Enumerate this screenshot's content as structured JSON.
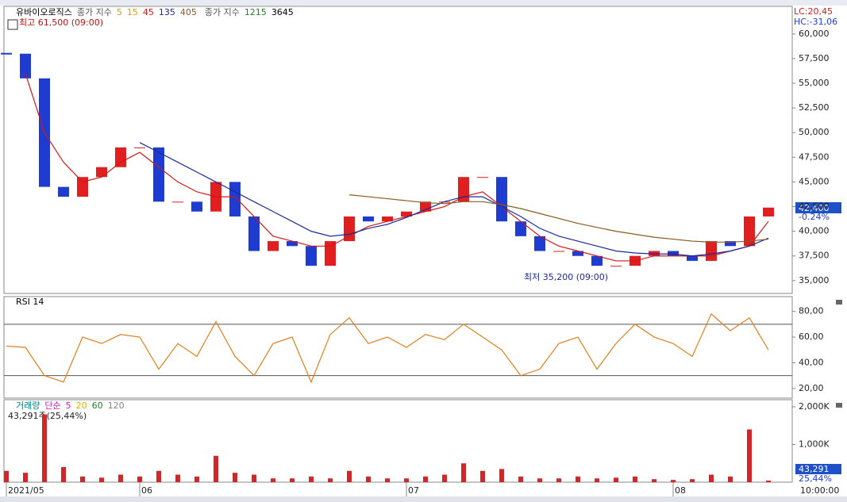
{
  "chart_data": [
    {
      "type": "candlestick",
      "title": "유바이오로직스",
      "legend_label": "종가 지수",
      "legend_extra": [
        {
          "name": "5",
          "color": "#b8a040"
        },
        {
          "name": "15",
          "color": "#e0a000"
        }
      ],
      "legend2_label": "종가 지수",
      "legend2": [
        {
          "name": "1215",
          "color": "#208020"
        },
        {
          "name": "3645",
          "color": "#000000"
        }
      ],
      "categories": [
        "2021/05",
        null,
        null,
        null,
        null,
        null,
        null,
        "06",
        null,
        null,
        null,
        null,
        null,
        null,
        null,
        null,
        null,
        null,
        null,
        null,
        null,
        "07",
        null,
        null,
        null,
        null,
        null,
        null,
        null,
        null,
        null,
        null,
        null,
        null,
        null,
        "08",
        null,
        null,
        null,
        null,
        null
      ],
      "values": [
        58000,
        55500,
        44500,
        43500,
        45500,
        46500,
        48500,
        48500,
        43000,
        43000,
        42000,
        45000,
        41500,
        38000,
        39000,
        38500,
        36500,
        39000,
        41500,
        41000,
        41500,
        42000,
        43000,
        43000,
        45500,
        45500,
        41000,
        39500,
        38000,
        38000,
        37500,
        36500,
        36500,
        37500,
        38000,
        37500,
        37000,
        39000,
        38500,
        41500,
        42400
      ],
      "up_color": "#e02020",
      "down_color": "#1e3cd0",
      "series": [
        {
          "name": "45",
          "color": "#d01818",
          "values": [
            null,
            56000,
            50000,
            47000,
            45000,
            45500,
            47000,
            48000,
            46500,
            45000,
            44000,
            43500,
            43500,
            41500,
            39500,
            39000,
            38500,
            38500,
            39500,
            40500,
            41000,
            41500,
            42000,
            42500,
            43500,
            44000,
            42500,
            41000,
            39500,
            38500,
            38000,
            37500,
            37000,
            37000,
            37500,
            37500,
            37500,
            37500,
            38000,
            38500,
            41000
          ]
        },
        {
          "name": "135",
          "color": "#1a2a9a",
          "values": [
            null,
            null,
            null,
            null,
            null,
            null,
            null,
            49000,
            48000,
            47000,
            46000,
            45000,
            44000,
            43000,
            42000,
            41000,
            40000,
            39500,
            39700,
            40300,
            40700,
            41400,
            42200,
            43000,
            43500,
            43500,
            42500,
            41500,
            40300,
            39500,
            39000,
            38500,
            38000,
            37800,
            37700,
            37700,
            37500,
            37700,
            38000,
            38500,
            39300
          ]
        },
        {
          "name": "405",
          "color": "#8a5a20",
          "values": [
            null,
            null,
            null,
            null,
            null,
            null,
            null,
            null,
            null,
            null,
            null,
            null,
            null,
            null,
            null,
            null,
            null,
            null,
            43700,
            43500,
            43300,
            43100,
            42900,
            42800,
            43000,
            43000,
            42700,
            42300,
            41800,
            41300,
            40800,
            40400,
            40000,
            39700,
            39400,
            39200,
            39000,
            38900,
            38900,
            39000,
            39200
          ]
        }
      ],
      "ylim": [
        33700,
        62800
      ],
      "yticks": [
        {
          "value": 60000,
          "label": "60,000"
        },
        {
          "value": 57500,
          "label": "57,500"
        },
        {
          "value": 55000,
          "label": "55,000"
        },
        {
          "value": 52500,
          "label": "52,500"
        },
        {
          "value": 50000,
          "label": "50,000"
        },
        {
          "value": 47500,
          "label": "47,500"
        },
        {
          "value": 45000,
          "label": "45,000"
        },
        {
          "value": 42500,
          "label": "42,500"
        },
        {
          "value": 40000,
          "label": "40,000"
        },
        {
          "value": 37500,
          "label": "37,500"
        },
        {
          "value": 35000,
          "label": "35,000"
        }
      ],
      "lc": "LC:20,45",
      "hc": "HC:-31,06",
      "high_note": "최고 61,500 (09:00)",
      "low_note": "최저 35,200 (09:00)",
      "last_label": "42,400",
      "change_label": "-0.24%"
    },
    {
      "type": "line",
      "title": "RSI 14",
      "color": "#e08020",
      "values": [
        53,
        52,
        30,
        25,
        60,
        55,
        62,
        60,
        35,
        55,
        45,
        72,
        45,
        30,
        55,
        60,
        25,
        62,
        75,
        55,
        60,
        52,
        62,
        58,
        70,
        60,
        50,
        30,
        35,
        55,
        60,
        35,
        55,
        70,
        60,
        55,
        45,
        78,
        65,
        75,
        50
      ],
      "ylim": [
        12.5,
        91.5
      ],
      "yticks": [
        {
          "value": 80,
          "label": "80,00"
        },
        {
          "value": 60,
          "label": "60,00"
        },
        {
          "value": 40,
          "label": "40,00"
        },
        {
          "value": 20,
          "label": "20,00"
        }
      ],
      "hlines": [
        70,
        30
      ]
    },
    {
      "type": "bar",
      "title": "거래량",
      "legend_label": "단순",
      "legend": [
        {
          "name": "5",
          "color": "#c020c0"
        },
        {
          "name": "20",
          "color": "#e0b000"
        },
        {
          "name": "60",
          "color": "#208020"
        },
        {
          "name": "120",
          "color": "#808080"
        }
      ],
      "subtitle": "43,291주(25,44%)",
      "color": "#d02828",
      "values": [
        300000,
        250000,
        1800000,
        400000,
        150000,
        120000,
        200000,
        150000,
        300000,
        200000,
        150000,
        700000,
        250000,
        200000,
        100000,
        100000,
        150000,
        100000,
        300000,
        150000,
        100000,
        100000,
        150000,
        200000,
        500000,
        300000,
        350000,
        150000,
        100000,
        100000,
        150000,
        100000,
        120000,
        150000,
        80000,
        60000,
        80000,
        200000,
        150000,
        1400000,
        43291
      ],
      "ylim": [
        0,
        2190000
      ],
      "yticks": [
        {
          "value": 2000000,
          "label": "2,000K"
        },
        {
          "value": 1000000,
          "label": "1,000K"
        }
      ],
      "last_label": "43,291",
      "last_pct": "25,44%",
      "time_label": "10:00:00"
    }
  ]
}
